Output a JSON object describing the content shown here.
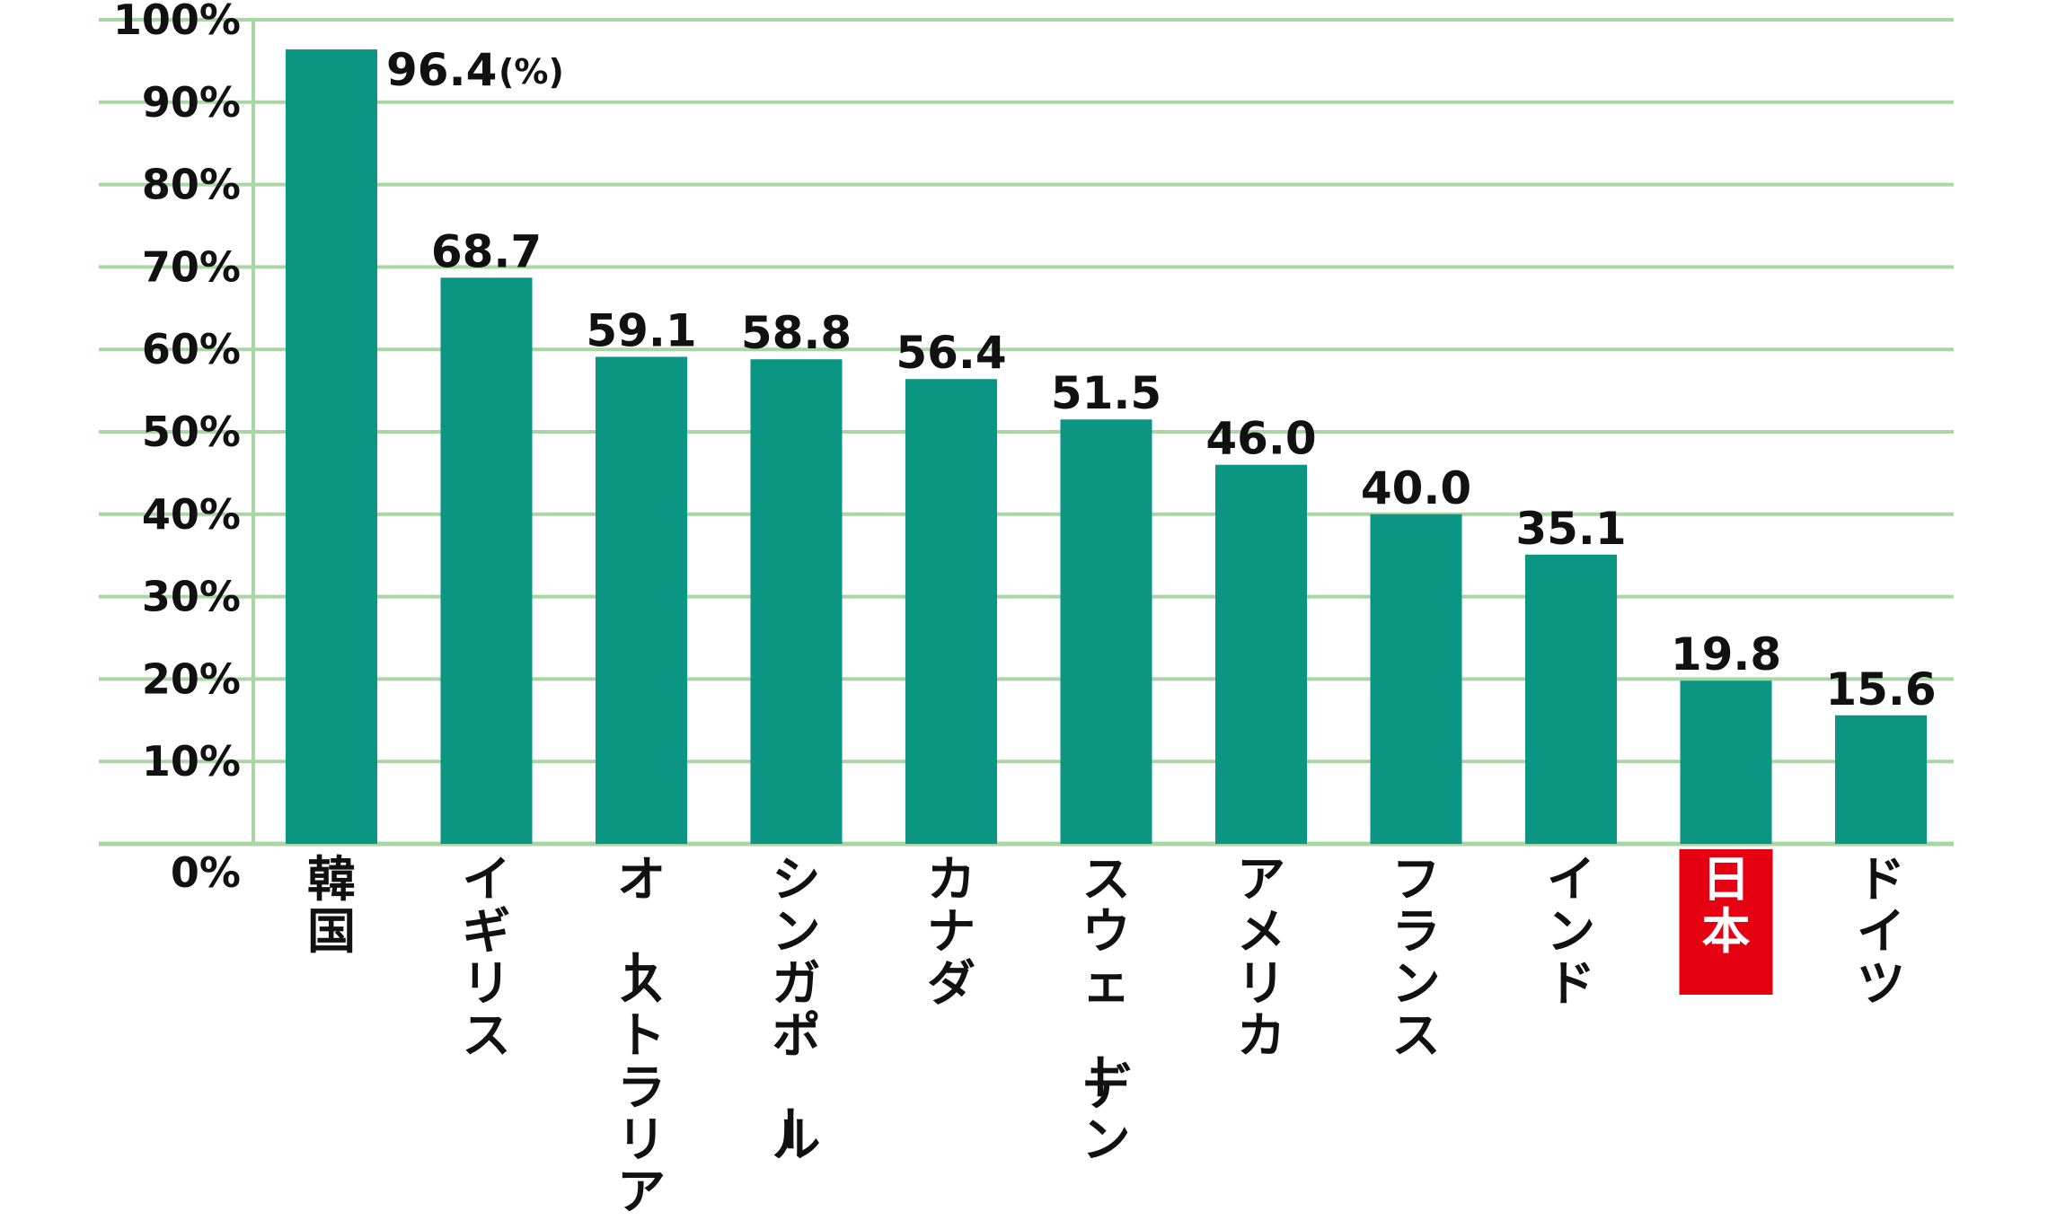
{
  "chart_data": {
    "type": "bar",
    "categories": [
      "韓国",
      "イギリス",
      "オーストラリア",
      "シンガポール",
      "カナダ",
      "スウェーデン",
      "アメリカ",
      "フランス",
      "インド",
      "日本",
      "ドイツ"
    ],
    "values": [
      96.4,
      68.7,
      59.1,
      58.8,
      56.4,
      51.5,
      46.0,
      40.0,
      35.1,
      19.8,
      15.6
    ],
    "value_labels": [
      "96.4",
      "68.7",
      "59.1",
      "58.8",
      "56.4",
      "51.5",
      "46.0",
      "40.0",
      "35.1",
      "19.8",
      "15.6"
    ],
    "unit_note": "(%)",
    "y_ticks": [
      "0%",
      "10%",
      "20%",
      "30%",
      "40%",
      "50%",
      "60%",
      "70%",
      "80%",
      "90%",
      "100%"
    ],
    "ylim": [
      0,
      100
    ],
    "title": "",
    "xlabel": "",
    "ylabel": "",
    "grid": true,
    "highlight_category": "日本",
    "colors": {
      "bar": "#0b9684",
      "grid": "#a9d7a4",
      "highlight_bg": "#e50012",
      "text": "#111111"
    }
  }
}
